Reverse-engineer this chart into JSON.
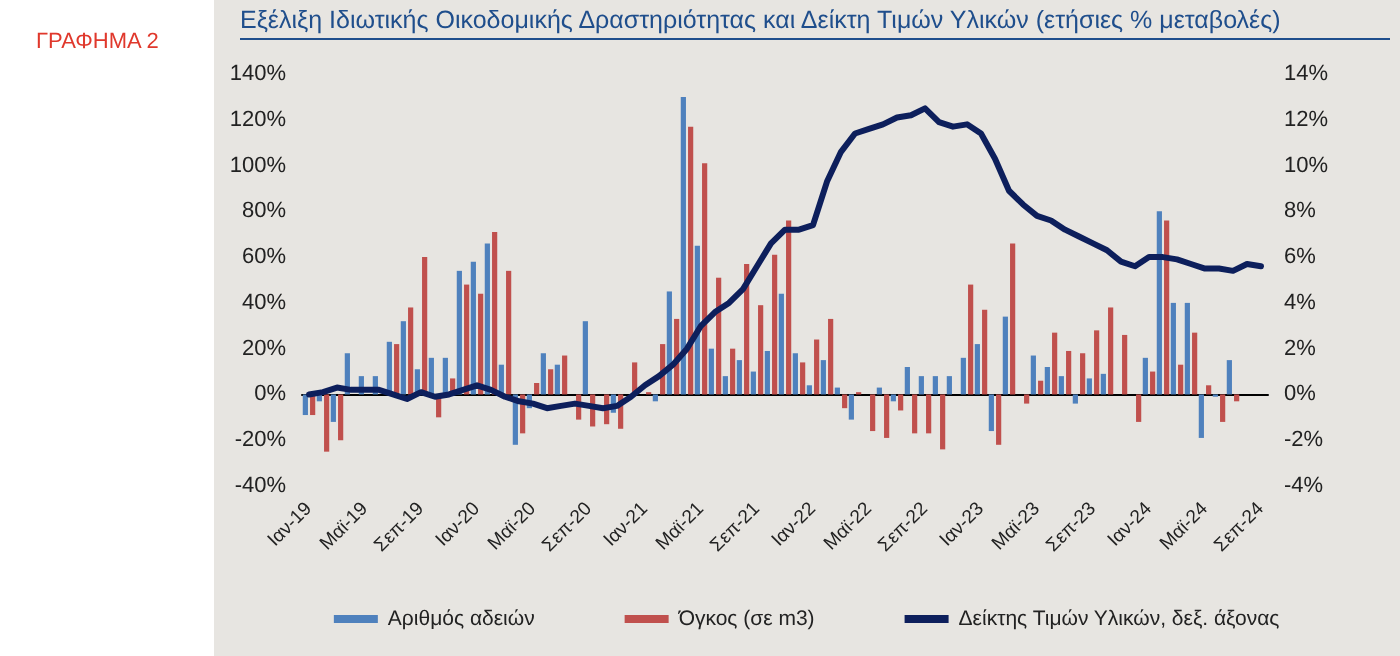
{
  "chart_data": {
    "type": "bar",
    "title": "Εξέλιξη Ιδιωτικής Οικοδομικής Δραστηριότητας και Δείκτη Τιμών Υλικών (ετήσιες % μεταβολές)",
    "annotations": [
      "ΓΡΑΦΗΜΑ 2"
    ],
    "categories": [
      "Ιαν-19",
      null,
      null,
      null,
      "Μαϊ-19",
      null,
      null,
      null,
      "Σεπ-19",
      null,
      null,
      null,
      "Ιαν-20",
      null,
      null,
      null,
      "Μαϊ-20",
      null,
      null,
      null,
      "Σεπ-20",
      null,
      null,
      null,
      "Ιαν-21",
      null,
      null,
      null,
      "Μαϊ-21",
      null,
      null,
      null,
      "Σεπ-21",
      null,
      null,
      null,
      "Ιαν-22",
      null,
      null,
      null,
      "Μαϊ-22",
      null,
      null,
      null,
      "Σεπ-22",
      null,
      null,
      null,
      "Ιαν-23",
      null,
      null,
      null,
      "Μαϊ-23",
      null,
      null,
      null,
      "Σεπ-23",
      null,
      null,
      null,
      "Ιαν-24",
      null,
      null,
      null,
      "Μαϊ-24",
      null,
      null,
      null,
      "Σεπ-24"
    ],
    "series": [
      {
        "name": "Αριθμός αδειών",
        "color": "#4f81bd",
        "values": [
          -9,
          -3,
          -12,
          18,
          8,
          8,
          23,
          32,
          11,
          16,
          16,
          54,
          58,
          66,
          13,
          -22,
          -6,
          18,
          13,
          0,
          32,
          0,
          -8,
          0,
          null,
          -3,
          45,
          130,
          65,
          20,
          8,
          15,
          10,
          19,
          44,
          18,
          4,
          15,
          3,
          -11,
          0,
          3,
          -3,
          12,
          8,
          8,
          8,
          16,
          22,
          -16,
          34,
          0,
          17,
          12,
          8,
          -4,
          7,
          9,
          0,
          0,
          16,
          80,
          40,
          40,
          -19,
          -1,
          15,
          null,
          null
        ]
      },
      {
        "name": "Όγκος (σε m3)",
        "color": "#c0504d",
        "values": [
          -9,
          -25,
          -20,
          null,
          null,
          null,
          22,
          38,
          60,
          -10,
          7,
          48,
          44,
          71,
          54,
          -17,
          5,
          11,
          17,
          -11,
          -14,
          -13,
          -15,
          14,
          1,
          22,
          33,
          117,
          101,
          51,
          20,
          57,
          39,
          61,
          76,
          14,
          24,
          33,
          -6,
          1,
          -16,
          -19,
          -7,
          -17,
          -17,
          -24,
          0,
          48,
          37,
          -22,
          66,
          -4,
          6,
          27,
          19,
          18,
          28,
          38,
          26,
          -12,
          10,
          76,
          13,
          27,
          4,
          -12,
          -3,
          null,
          null
        ]
      },
      {
        "name": "Δείκτης Τιμών Υλικών, δεξ. άξονας",
        "color": "#0d1f5c",
        "type": "line",
        "axis": "y2",
        "values": [
          0.0,
          0.1,
          0.3,
          0.2,
          0.2,
          0.2,
          0.0,
          -0.2,
          0.1,
          -0.1,
          0.0,
          0.2,
          0.4,
          0.2,
          -0.1,
          -0.3,
          -0.4,
          -0.6,
          -0.5,
          -0.4,
          -0.5,
          -0.6,
          -0.5,
          -0.1,
          0.4,
          0.8,
          1.3,
          2.0,
          3.0,
          3.6,
          4.0,
          4.6,
          5.6,
          6.6,
          7.2,
          7.2,
          7.4,
          9.3,
          10.6,
          11.4,
          11.6,
          11.8,
          12.1,
          12.2,
          12.5,
          11.9,
          11.7,
          11.8,
          11.4,
          10.3,
          8.9,
          8.3,
          7.8,
          7.6,
          7.2,
          6.9,
          6.6,
          6.3,
          5.8,
          5.6,
          6.0,
          6.0,
          5.9,
          5.7,
          5.5,
          5.5,
          5.4,
          5.7,
          5.6
        ]
      }
    ],
    "ylim": [
      -40,
      140
    ],
    "yticks": [
      {
        "value": -40,
        "label": "-40%"
      },
      {
        "value": -20,
        "label": "-20%"
      },
      {
        "value": 0,
        "label": "0%"
      },
      {
        "value": 20,
        "label": "20%"
      },
      {
        "value": 40,
        "label": "40%"
      },
      {
        "value": 60,
        "label": "60%"
      },
      {
        "value": 80,
        "label": "80%"
      },
      {
        "value": 100,
        "label": "100%"
      },
      {
        "value": 120,
        "label": "120%"
      },
      {
        "value": 140,
        "label": "140%"
      }
    ],
    "y2lim": [
      -4,
      14
    ],
    "y2ticks": [
      {
        "value": -4,
        "label": "-4%"
      },
      {
        "value": -2,
        "label": "-2%"
      },
      {
        "value": 0,
        "label": "0%"
      },
      {
        "value": 2,
        "label": "2%"
      },
      {
        "value": 4,
        "label": "4%"
      },
      {
        "value": 6,
        "label": "6%"
      },
      {
        "value": 8,
        "label": "8%"
      },
      {
        "value": 10,
        "label": "10%"
      },
      {
        "value": 12,
        "label": "12%"
      },
      {
        "value": 14,
        "label": "14%"
      }
    ],
    "legend": "bottom",
    "marker": "none",
    "line_style": "solid"
  }
}
